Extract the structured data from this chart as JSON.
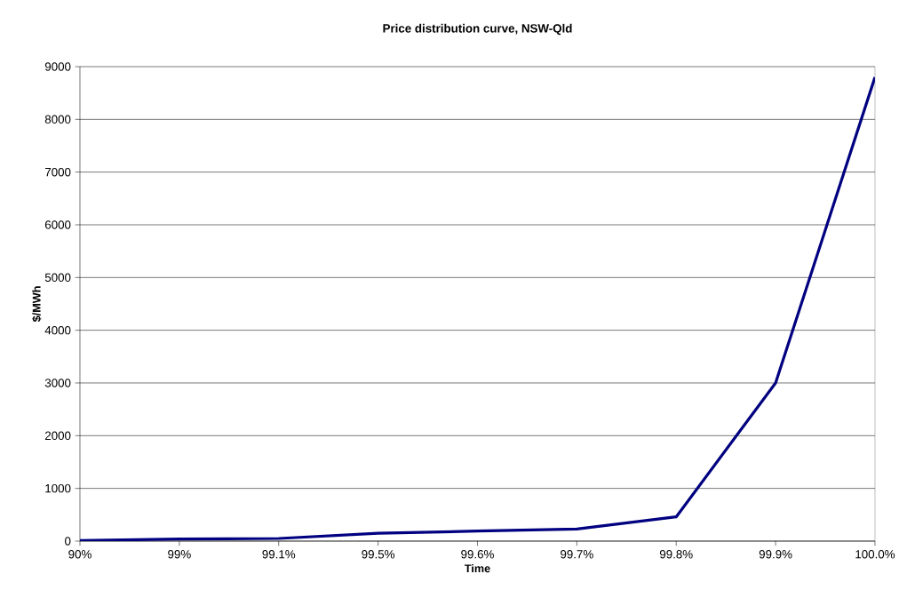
{
  "chart_data": {
    "type": "line",
    "title": "Price distribution curve, NSW-Qld",
    "xlabel": "Time",
    "ylabel": "$/MWh",
    "categories": [
      "90%",
      "99%",
      "99.1%",
      "99.5%",
      "99.6%",
      "99.7%",
      "99.8%",
      "99.9%",
      "100.0%"
    ],
    "series": [
      {
        "color": "#000080",
        "values": [
          10,
          40,
          50,
          150,
          190,
          230,
          460,
          3000,
          8800
        ]
      }
    ],
    "ylim": [
      0,
      9000
    ],
    "yticks": [
      0,
      1000,
      2000,
      3000,
      4000,
      5000,
      6000,
      7000,
      8000,
      9000
    ],
    "grid": "y",
    "marker": "none",
    "line_style": "solid"
  }
}
